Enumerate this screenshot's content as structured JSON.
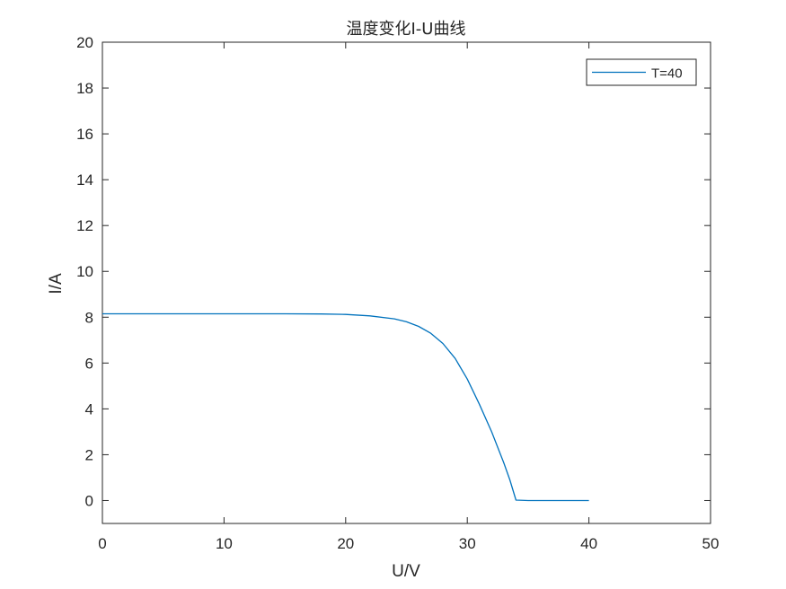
{
  "chart_data": {
    "type": "line",
    "title": "温度变化I-U曲线",
    "xlabel": "U/V",
    "ylabel": "I/A",
    "xlim": [
      0,
      50
    ],
    "ylim": [
      -1,
      20
    ],
    "xticks": [
      0,
      10,
      20,
      30,
      40,
      50
    ],
    "yticks": [
      0,
      2,
      4,
      6,
      8,
      10,
      12,
      14,
      16,
      18,
      20
    ],
    "grid": false,
    "legend_position": "top-right",
    "series": [
      {
        "name": "T=40",
        "color": "#0072BD",
        "x": [
          0,
          5,
          10,
          15,
          18,
          20,
          22,
          24,
          25,
          26,
          27,
          28,
          29,
          30,
          31,
          32,
          33,
          33.5,
          34,
          35,
          40
        ],
        "y": [
          8.15,
          8.15,
          8.15,
          8.15,
          8.14,
          8.12,
          8.06,
          7.93,
          7.8,
          7.6,
          7.3,
          6.85,
          6.2,
          5.3,
          4.2,
          3.0,
          1.65,
          0.9,
          0.02,
          0,
          0
        ]
      }
    ]
  }
}
